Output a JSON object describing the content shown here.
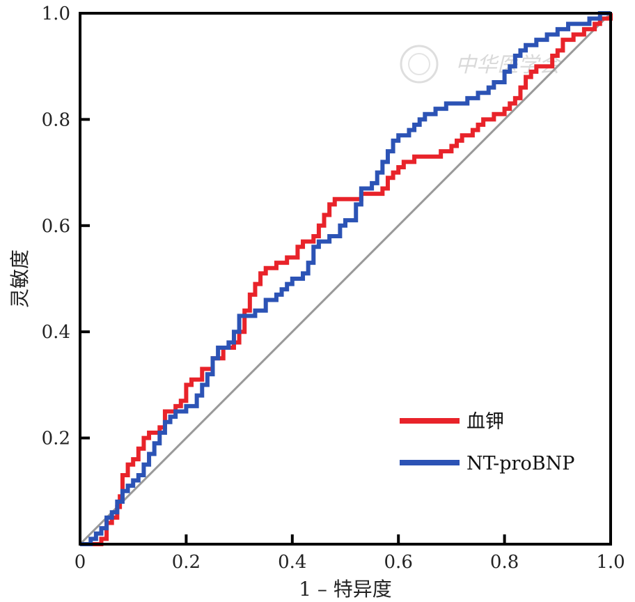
{
  "chart_data": {
    "type": "line",
    "title": "",
    "xlabel": "1 – 特异度",
    "ylabel": "灵敏度",
    "xlim": [
      0,
      1
    ],
    "ylim": [
      0,
      1
    ],
    "x_ticks": [
      "0",
      "0.2",
      "0.4",
      "0.6",
      "0.8",
      "1.0"
    ],
    "y_ticks": [
      "0.2",
      "0.4",
      "0.6",
      "0.8",
      "1.0"
    ],
    "x_tick_values": [
      0,
      0.2,
      0.4,
      0.6,
      0.8,
      1.0
    ],
    "y_tick_values": [
      0.2,
      0.4,
      0.6,
      0.8,
      1.0
    ],
    "grid": false,
    "legend_position": "bottom-right",
    "reference_line": {
      "x": [
        0,
        1
      ],
      "y": [
        0,
        1
      ],
      "color": "#999999"
    },
    "watermark": "中华医学会",
    "series": [
      {
        "name": "血钾",
        "color": "#e8232a",
        "x": [
          0,
          0.02,
          0.03,
          0.04,
          0.05,
          0.06,
          0.07,
          0.075,
          0.08,
          0.09,
          0.1,
          0.11,
          0.12,
          0.13,
          0.15,
          0.16,
          0.18,
          0.19,
          0.2,
          0.21,
          0.23,
          0.25,
          0.27,
          0.29,
          0.3,
          0.31,
          0.32,
          0.33,
          0.34,
          0.35,
          0.37,
          0.39,
          0.41,
          0.42,
          0.44,
          0.45,
          0.46,
          0.47,
          0.48,
          0.5,
          0.52,
          0.53,
          0.55,
          0.57,
          0.58,
          0.59,
          0.6,
          0.61,
          0.63,
          0.65,
          0.68,
          0.7,
          0.71,
          0.72,
          0.74,
          0.75,
          0.76,
          0.78,
          0.8,
          0.81,
          0.82,
          0.83,
          0.84,
          0.85,
          0.86,
          0.87,
          0.89,
          0.9,
          0.91,
          0.93,
          0.95,
          0.97,
          0.98,
          1.0
        ],
        "y": [
          0,
          0,
          0,
          0.01,
          0.04,
          0.05,
          0.07,
          0.09,
          0.13,
          0.15,
          0.16,
          0.18,
          0.2,
          0.21,
          0.22,
          0.25,
          0.26,
          0.27,
          0.3,
          0.31,
          0.33,
          0.35,
          0.37,
          0.38,
          0.4,
          0.44,
          0.47,
          0.49,
          0.51,
          0.52,
          0.53,
          0.54,
          0.56,
          0.57,
          0.58,
          0.6,
          0.62,
          0.64,
          0.65,
          0.65,
          0.65,
          0.66,
          0.66,
          0.67,
          0.69,
          0.7,
          0.71,
          0.72,
          0.73,
          0.73,
          0.74,
          0.75,
          0.76,
          0.77,
          0.78,
          0.79,
          0.8,
          0.81,
          0.82,
          0.83,
          0.84,
          0.86,
          0.88,
          0.89,
          0.9,
          0.9,
          0.92,
          0.93,
          0.95,
          0.96,
          0.97,
          0.98,
          0.99,
          1.0
        ]
      },
      {
        "name": "NT-proBNP",
        "color": "#2c53b5",
        "x": [
          0,
          0.02,
          0.03,
          0.04,
          0.05,
          0.06,
          0.07,
          0.08,
          0.09,
          0.1,
          0.11,
          0.12,
          0.13,
          0.14,
          0.15,
          0.16,
          0.17,
          0.18,
          0.2,
          0.22,
          0.23,
          0.24,
          0.25,
          0.26,
          0.28,
          0.29,
          0.3,
          0.31,
          0.33,
          0.35,
          0.37,
          0.38,
          0.39,
          0.4,
          0.42,
          0.43,
          0.44,
          0.45,
          0.47,
          0.49,
          0.5,
          0.52,
          0.53,
          0.55,
          0.56,
          0.57,
          0.58,
          0.59,
          0.6,
          0.62,
          0.63,
          0.64,
          0.65,
          0.67,
          0.69,
          0.71,
          0.73,
          0.75,
          0.77,
          0.78,
          0.8,
          0.81,
          0.82,
          0.83,
          0.84,
          0.86,
          0.88,
          0.9,
          0.92,
          0.94,
          0.96,
          0.98,
          1.0
        ],
        "y": [
          0,
          0.01,
          0.02,
          0.03,
          0.05,
          0.06,
          0.08,
          0.1,
          0.11,
          0.12,
          0.13,
          0.15,
          0.17,
          0.19,
          0.21,
          0.23,
          0.24,
          0.25,
          0.26,
          0.28,
          0.3,
          0.32,
          0.35,
          0.37,
          0.38,
          0.4,
          0.43,
          0.43,
          0.44,
          0.46,
          0.47,
          0.48,
          0.49,
          0.5,
          0.51,
          0.53,
          0.56,
          0.57,
          0.58,
          0.6,
          0.61,
          0.64,
          0.67,
          0.68,
          0.7,
          0.72,
          0.74,
          0.76,
          0.77,
          0.78,
          0.79,
          0.8,
          0.81,
          0.82,
          0.83,
          0.83,
          0.84,
          0.85,
          0.86,
          0.87,
          0.89,
          0.9,
          0.92,
          0.93,
          0.94,
          0.95,
          0.96,
          0.97,
          0.98,
          0.98,
          0.99,
          1.0,
          1.0
        ]
      }
    ]
  }
}
